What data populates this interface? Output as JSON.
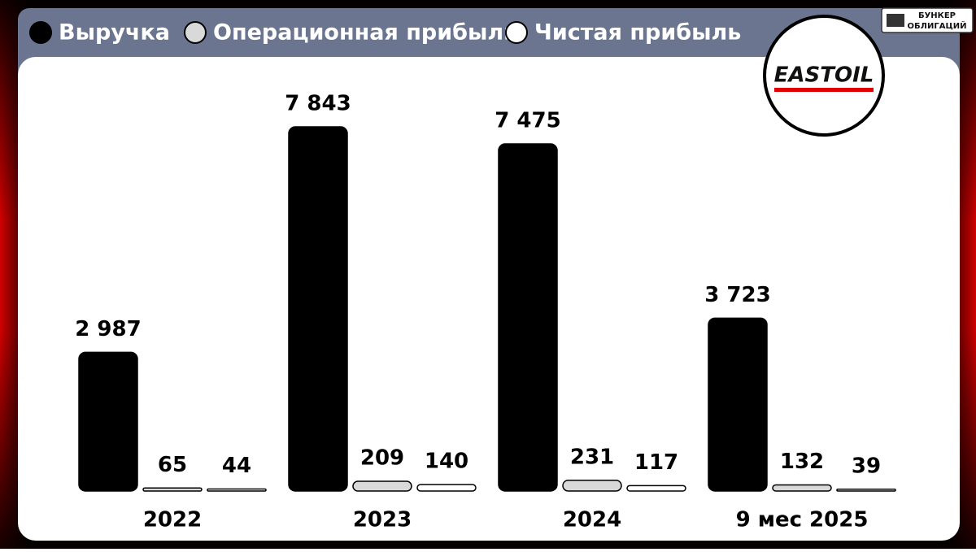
{
  "chart_data": {
    "type": "bar",
    "categories": [
      "2022",
      "2023",
      "2024",
      "9 мес 2025"
    ],
    "series": [
      {
        "name": "Выручка",
        "color": "#000000",
        "values": [
          2987,
          7843,
          7475,
          3723
        ],
        "value_labels": [
          "2 987",
          "7 843",
          "7 475",
          "3 723"
        ]
      },
      {
        "name": "Операционная прибыль",
        "color": "#d9d9d9",
        "values": [
          65,
          209,
          231,
          132
        ]
      },
      {
        "name": "Чистая прибыль",
        "color": "#ffffff",
        "values": [
          44,
          140,
          117,
          39
        ]
      }
    ]
  },
  "logo": {
    "text": "EASTOIL"
  },
  "badge": {
    "line1": "БУНКЕР",
    "line2": "ОБЛИГАЦИЙ"
  }
}
